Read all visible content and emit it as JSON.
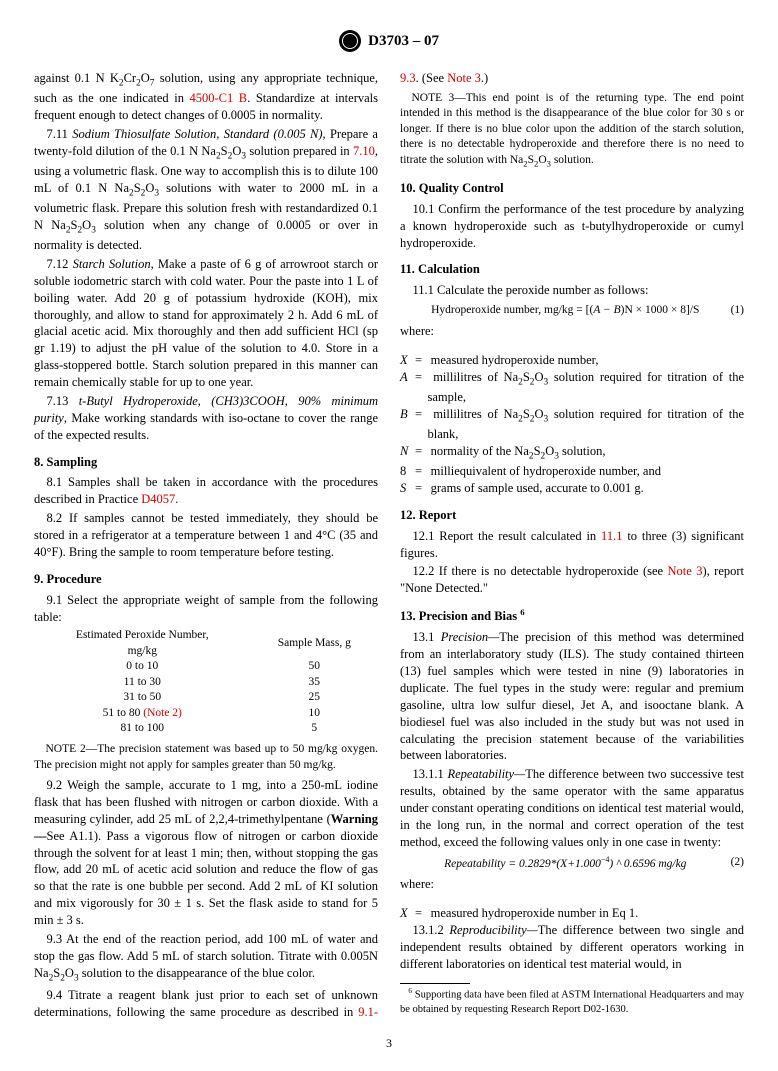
{
  "header": {
    "doc_id": "D3703 – 07"
  },
  "col1": {
    "p_against": "against 0.1 N K",
    "p_against2": " solution, using any appropriate technique, such as the one indicated in ",
    "ref_4500": "4500-C1 B",
    "p_against3": ". Standardize at intervals frequent enough to detect changes of 0.0005 in normality.",
    "s711_lead": "7.11 ",
    "s711_title": "Sodium Thiosulfate Solution, Standard (0.005 N)",
    "s711_body1": ", Prepare a twenty-fold dilution of the 0.1 N Na",
    "s711_body2": " solution prepared in ",
    "ref_710": "7.10",
    "s711_body3": ", using a volumetric flask. One way to accomplish this is to dilute 100 mL of 0.1 N Na",
    "s711_body4": " solutions with water to 2000 mL in a volumetric flask. Prepare this solution fresh with restandardized 0.1 N Na",
    "s711_body5": " solution when any change of 0.0005 or over in normality is detected.",
    "s712_lead": "7.12 ",
    "s712_title": "Starch Solution",
    "s712_body": ", Make a paste of 6 g of arrowroot starch or soluble iodometric starch with cold water. Pour the paste into 1 L of boiling water. Add 20 g of potassium hydroxide (KOH), mix thoroughly, and allow to stand for approximately 2 h. Add 6 mL of glacial acetic acid. Mix thoroughly and then add sufficient HCl (sp gr 1.19) to adjust the pH value of the solution to 4.0. Store in a glass-stoppered bottle. Starch solution prepared in this manner can remain chemically stable for up to one year.",
    "s713_lead": "7.13 ",
    "s713_title": "t-Butyl Hydroperoxide, (CH3)3COOH, 90% minimum purity",
    "s713_body": ", Make working standards with iso-octane to cover the range of the expected results.",
    "s8_head": "8. Sampling",
    "s81_body1": "8.1 Samples shall be taken in accordance with the procedures described in Practice ",
    "ref_d4057": "D4057",
    "s81_body2": ".",
    "s82_body": "8.2 If samples cannot be tested immediately, they should be stored in a refrigerator at a temperature between 1 and 4°C (35 and 40°F). Bring the sample to room temperature before testing.",
    "s9_head": "9. Procedure",
    "s91_body": "9.1 Select the appropriate weight of sample from the following table:",
    "tbl": {
      "h1": "Estimated Peroxide Number,",
      "h1b": "mg/kg",
      "h2": "Sample Mass, g",
      "rows": [
        {
          "a": "0 to 10",
          "b": "50"
        },
        {
          "a": "11 to 30",
          "b": "35"
        },
        {
          "a": "31 to 50",
          "b": "25"
        },
        {
          "a": "51 to 80 ",
          "aref": "(Note 2)",
          "b": "10"
        },
        {
          "a": "81 to 100",
          "b": "5"
        }
      ]
    },
    "note2_lead": "NOTE 2—",
    "note2_body": "The precision statement was based up to 50 mg/kg oxygen. The precision might not apply for samples greater than 50 mg/kg.",
    "s92_body1": "9.2 Weigh the sample, accurate to 1 mg, into a 250-mL iodine flask that has been flushed with nitrogen or carbon dioxide. With a measuring cylinder, add 25 mL of 2,2,4-trimethylpentane (",
    "s92_warn": "Warning—",
    "s92_body2": "See A1.1). Pass a vigorous flow of nitrogen or carbon dioxide through the solvent for at least 1 min; then, without stopping the gas flow, add 20 mL of acetic acid solution and reduce the flow of gas so that the rate is one bubble per second. Add 2 mL of KI solution and mix vigorously for 30 ± 1 s. Set the flask aside to stand for 5 min ± 3 s.",
    "s93_body1": "9.3 At the end of the reaction period, add 100 mL of water and stop the gas flow. Add 5 mL of starch solution. Titrate with 0.005N Na",
    "s93_body2": " solution to the disappearance of the blue color."
  },
  "col2": {
    "s94_body1": "9.4 Titrate a reagent blank just prior to each set of unknown determinations, following the same procedure as described in ",
    "ref_9193": "9.1-9.3",
    "s94_body2": ". (See ",
    "ref_note3": "Note 3",
    "s94_body3": ".)",
    "note3_lead": "NOTE 3—",
    "note3_body": "This end point is of the returning type. The end point intended in this method is the disappearance of the blue color for 30 s or longer. If there is no blue color upon the addition of the starch solution, there is no detectable hydroperoxide and therefore there is no need to titrate the solution with Na",
    "note3_body2": " solution.",
    "s10_head": "10. Quality Control",
    "s101_body": "10.1 Confirm the performance of the test procedure by analyzing a known hydroperoxide such as t-butylhydroperoxide or cumyl hydroperoxide.",
    "s11_head": "11. Calculation",
    "s111_body": "11.1 Calculate the peroxide number as follows:",
    "eq1_label": "Hydroperoxide number, mg/kg = [(",
    "eq1_ab": "A − B",
    "eq1_rest": ")N × 1000 × 8]/S",
    "eq1_num": "(1)",
    "where": "where:",
    "w_X": "measured hydroperoxide number,",
    "w_A1": "millilitres of Na",
    "w_A2": " solution required for titration of the sample,",
    "w_B1": "millilitres of Na",
    "w_B2": " solution required for titration of the blank,",
    "w_N1": "normality of the Na",
    "w_N2": " solution,",
    "w_8": "milliequivalent of hydroperoxide number, and",
    "w_S": "grams of sample used, accurate to 0.001 g.",
    "s12_head": "12. Report",
    "s121_body1": "12.1 Report the result calculated in ",
    "ref_111": "11.1",
    "s121_body2": " to three (3) significant figures.",
    "s122_body1": "12.2 If there is no detectable hydroperoxide (see ",
    "s122_body2": "), report \"None Detected.\"",
    "s13_head": "13. Precision and Bias ",
    "s13_sup": "6",
    "s131_lead": "13.1 ",
    "s131_title": "Precision—",
    "s131_body": "The precision of this method was determined from an interlaboratory study (ILS). The study contained thirteen (13) fuel samples which were tested in nine (9) laboratories in duplicate. The fuel types in the study were: regular and premium gasoline, ultra low sulfur diesel, Jet A, and isooctane blank. A biodiesel fuel was also included in the study but was not used in calculating the precision statement because of the variabilities between laboratories.",
    "s1311_lead": "13.1.1 ",
    "s1311_title": "Repeatability—",
    "s1311_body": "The difference between two successive test results, obtained by the same operator with the same apparatus under constant operating conditions on identical test material would, in the long run, in the normal and correct operation of the test method, exceed the following values only in one case in twenty:",
    "eq2_body": "Repeatability = 0.2829*(X+1.000",
    "eq2_exp": "−4",
    "eq2_rest": ") ^ 0.6596 mg/kg",
    "eq2_num": "(2)",
    "where2": "where:",
    "w2_X": "measured hydroperoxide number in Eq 1.",
    "s1312_lead": "13.1.2 ",
    "s1312_title": "Reproducibility—",
    "s1312_body": "The difference between two single and independent results obtained by different operators working in different laboratories on identical test material would, in",
    "fn6_sup": "6",
    "fn6_body": " Supporting data have been filed at ASTM International Headquarters and may be obtained by requesting Research Report  D02-1630."
  },
  "pagenum": "3"
}
